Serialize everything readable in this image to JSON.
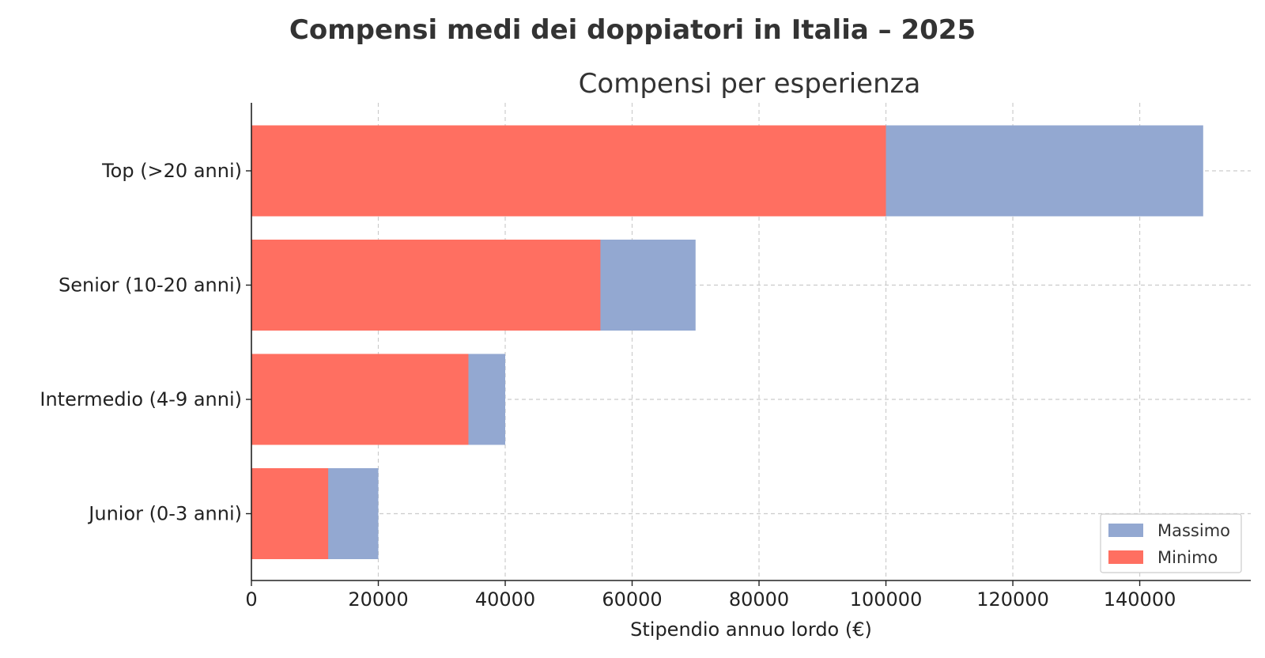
{
  "suptitle": "Compensi medi dei doppiatori in Italia – 2025",
  "chart_data": {
    "type": "bar",
    "orientation": "horizontal",
    "stacking": "overlay",
    "title": "Compensi per esperienza",
    "xlabel": "Stipendio annuo lordo (€)",
    "ylabel": "",
    "xlim": [
      0,
      157500
    ],
    "xticks": [
      0,
      20000,
      40000,
      60000,
      80000,
      100000,
      120000,
      140000
    ],
    "categories": [
      "Top (>20 anni)",
      "Senior (10-20 anni)",
      "Intermedio (4-9 anni)",
      "Junior (0-3 anni)"
    ],
    "series": [
      {
        "name": "Massimo",
        "color": "#93a8d1",
        "values": [
          150000,
          70000,
          40000,
          20000
        ]
      },
      {
        "name": "Minimo",
        "color": "#ff6f61",
        "values": [
          100000,
          55000,
          34200,
          12100
        ]
      }
    ],
    "grid": true,
    "legend_position": "bottom-right"
  }
}
